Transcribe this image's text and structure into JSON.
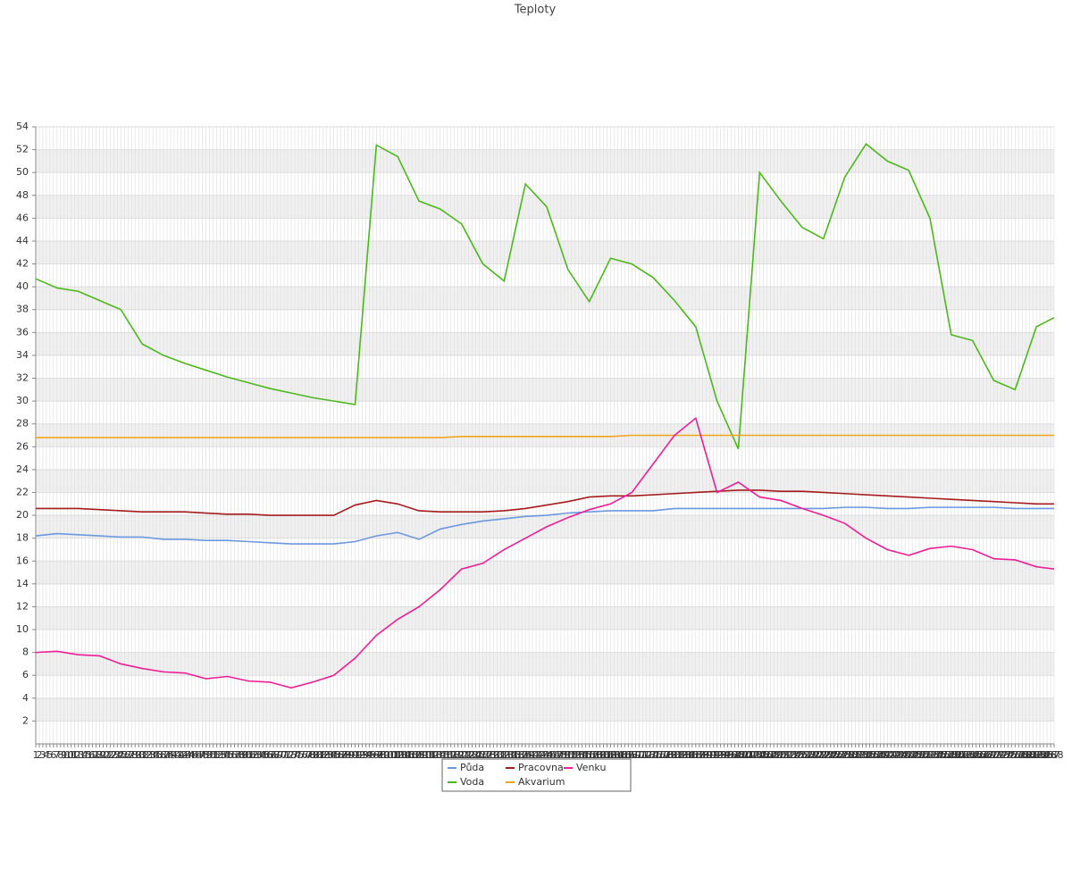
{
  "chart_data": {
    "type": "line",
    "title": "Teploty",
    "x": [
      1,
      7,
      13,
      19,
      25,
      31,
      37,
      43,
      49,
      55,
      61,
      67,
      73,
      79,
      85,
      91,
      97,
      103,
      109,
      115,
      121,
      127,
      133,
      139,
      145,
      151,
      157,
      163,
      169,
      175,
      181,
      187,
      193,
      199,
      205,
      211,
      217,
      223,
      229,
      235,
      241,
      247,
      253,
      259,
      265,
      271,
      277,
      283,
      288
    ],
    "xlim": [
      1,
      288
    ],
    "xticks": [
      1,
      2,
      3,
      4,
      5,
      6,
      7,
      8,
      9,
      10,
      11,
      12,
      13,
      14,
      15,
      16,
      17,
      18,
      19,
      20,
      21,
      22,
      23,
      24,
      25,
      26,
      27,
      28,
      29,
      30,
      31,
      32,
      33,
      34,
      35,
      36,
      37,
      38,
      39,
      40,
      41,
      42,
      43,
      44,
      45,
      46,
      47,
      48,
      49,
      50,
      51,
      52,
      53,
      54,
      55,
      56,
      57,
      58,
      59,
      60,
      61,
      62,
      63,
      64,
      65,
      66,
      67,
      68,
      69,
      70,
      71,
      72,
      73,
      74,
      75,
      76,
      77,
      78,
      79,
      80,
      81,
      82,
      83,
      84,
      85,
      86,
      87,
      88,
      89,
      90,
      91,
      92,
      93,
      94,
      95,
      96,
      97,
      98,
      99,
      100,
      101,
      102,
      103,
      104,
      105,
      106,
      107,
      108,
      109,
      110,
      111,
      112,
      113,
      114,
      115,
      116,
      117,
      118,
      119,
      120,
      121,
      122,
      123,
      124,
      125,
      126,
      127,
      128,
      129,
      130,
      131,
      132,
      133,
      134,
      135,
      136,
      137,
      138,
      139,
      140,
      141,
      142,
      143,
      144,
      145,
      146,
      147,
      148,
      149,
      150,
      151,
      152,
      153,
      154,
      155,
      156,
      157,
      158,
      159,
      160,
      161,
      162,
      163,
      164,
      165,
      166,
      167,
      168,
      169,
      170,
      171,
      172,
      173,
      174,
      175,
      176,
      177,
      178,
      179,
      180,
      181,
      182,
      183,
      184,
      185,
      186,
      187,
      188,
      189,
      190,
      191,
      192,
      193,
      194,
      195,
      196,
      197,
      198,
      199,
      200,
      201,
      202,
      203,
      204,
      205,
      206,
      207,
      208,
      209,
      210,
      211,
      212,
      213,
      214,
      215,
      216,
      217,
      218,
      219,
      220,
      221,
      222,
      223,
      224,
      225,
      226,
      227,
      228,
      229,
      230,
      231,
      232,
      233,
      234,
      235,
      236,
      237,
      238,
      239,
      240,
      241,
      242,
      243,
      244,
      245,
      246,
      247,
      248,
      249,
      250,
      251,
      252,
      253,
      254,
      255,
      256,
      257,
      258,
      259,
      260,
      261,
      262,
      263,
      264,
      265,
      266,
      267,
      268,
      269,
      270,
      271,
      272,
      273,
      274,
      275,
      276,
      277,
      278,
      279,
      280,
      281,
      282,
      283,
      284,
      285,
      286,
      287,
      288
    ],
    "ylim": [
      0,
      54
    ],
    "yticks": [
      2,
      4,
      6,
      8,
      10,
      12,
      14,
      16,
      18,
      20,
      22,
      24,
      26,
      28,
      30,
      32,
      34,
      36,
      38,
      40,
      42,
      44,
      46,
      48,
      50,
      52,
      54
    ],
    "grid": true,
    "series": [
      {
        "name": "Půda",
        "color": "#6b98e0",
        "values": [
          18.2,
          18.4,
          18.3,
          18.2,
          18.1,
          18.1,
          17.9,
          17.9,
          17.8,
          17.8,
          17.7,
          17.6,
          17.5,
          17.5,
          17.5,
          17.7,
          18.2,
          18.5,
          17.9,
          18.8,
          19.2,
          19.5,
          19.7,
          19.9,
          20.0,
          20.2,
          20.3,
          20.4,
          20.4,
          20.4,
          20.6,
          20.6,
          20.6,
          20.6,
          20.6,
          20.6,
          20.6,
          20.6,
          20.7,
          20.7,
          20.6,
          20.6,
          20.7,
          20.7,
          20.7,
          20.7,
          20.6,
          20.6,
          20.6
        ]
      },
      {
        "name": "Voda",
        "color": "#4cb81c",
        "values": [
          40.7,
          39.9,
          39.6,
          38.8,
          38.0,
          35.0,
          34.0,
          33.3,
          32.7,
          32.1,
          31.6,
          31.1,
          30.7,
          30.3,
          30.0,
          29.7,
          52.4,
          51.4,
          47.5,
          46.8,
          45.5,
          42.0,
          40.5,
          49.0,
          47.0,
          41.5,
          38.7,
          42.5,
          42.0,
          40.8,
          38.8,
          36.5,
          30.0,
          25.8,
          50.0,
          47.5,
          45.2,
          44.2,
          49.6,
          52.5,
          51.0,
          50.2,
          46.0,
          35.8,
          35.3,
          31.8,
          31.0,
          36.5,
          37.3
        ]
      },
      {
        "name": "Pracovna",
        "color": "#a51c1c",
        "values": [
          20.6,
          20.6,
          20.6,
          20.5,
          20.4,
          20.3,
          20.3,
          20.3,
          20.2,
          20.1,
          20.1,
          20.0,
          20.0,
          20.0,
          20.0,
          20.9,
          21.3,
          21.0,
          20.4,
          20.3,
          20.3,
          20.3,
          20.4,
          20.6,
          20.9,
          21.2,
          21.6,
          21.7,
          21.7,
          21.8,
          21.9,
          22.0,
          22.1,
          22.2,
          22.2,
          22.1,
          22.1,
          22.0,
          21.9,
          21.8,
          21.7,
          21.6,
          21.5,
          21.4,
          21.3,
          21.2,
          21.1,
          21.0,
          21.0
        ]
      },
      {
        "name": "Akvarium",
        "color": "#f2a51b",
        "values": [
          26.8,
          26.8,
          26.8,
          26.8,
          26.8,
          26.8,
          26.8,
          26.8,
          26.8,
          26.8,
          26.8,
          26.8,
          26.8,
          26.8,
          26.8,
          26.8,
          26.8,
          26.8,
          26.8,
          26.8,
          26.9,
          26.9,
          26.9,
          26.9,
          26.9,
          26.9,
          26.9,
          26.9,
          27.0,
          27.0,
          27.0,
          27.0,
          27.0,
          27.0,
          27.0,
          27.0,
          27.0,
          27.0,
          27.0,
          27.0,
          27.0,
          27.0,
          27.0,
          27.0,
          27.0,
          27.0,
          27.0,
          27.0,
          27.0
        ]
      },
      {
        "name": "Venku",
        "color": "#f01e96",
        "values": [
          8.0,
          8.1,
          7.8,
          7.7,
          7.0,
          6.6,
          6.3,
          6.2,
          5.7,
          5.9,
          5.5,
          5.4,
          4.9,
          5.4,
          6.0,
          7.5,
          9.5,
          10.9,
          12.0,
          13.5,
          15.3,
          15.8,
          17.0,
          18.0,
          19.0,
          19.8,
          20.5,
          21.0,
          22.0,
          24.5,
          27.0,
          28.5,
          22.0,
          22.9,
          21.6,
          21.3,
          20.6,
          20.0,
          19.3,
          18.0,
          17.0,
          16.5,
          17.1,
          17.3,
          17.0,
          16.2,
          16.1,
          15.5,
          15.3
        ]
      }
    ]
  }
}
